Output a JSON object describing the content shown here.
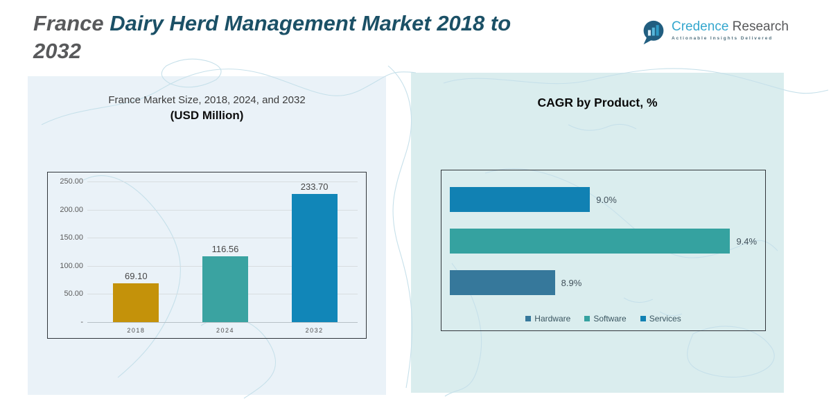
{
  "header": {
    "title_part1": "France ",
    "title_part2": "Dairy Herd Management Market 2018 to ",
    "title_part3": "2032",
    "logo": {
      "brand_part1": "Credence",
      "brand_part2": " Research",
      "tagline": "Actionable Insights Delivered",
      "icon": "bar-chart-speech-bubble",
      "accent_color": "#35A7CE",
      "icon_color": "#215E80"
    }
  },
  "left_chart": {
    "title_line1": "France Market Size, 2018, 2024, and 2032",
    "title_line2": "(USD Million)"
  },
  "right_chart": {
    "title": "CAGR by Product, %"
  },
  "chart_data": [
    {
      "type": "bar",
      "title": "France Market Size, 2018, 2024, and 2032 (USD Million)",
      "xlabel": "",
      "ylabel": "USD Million",
      "categories": [
        "2018",
        "2024",
        "2032"
      ],
      "values": [
        69.1,
        116.56,
        233.7
      ],
      "value_labels": [
        "69.10",
        "116.56",
        "233.70"
      ],
      "bar_colors": [
        "#C4920A",
        "#3AA3A1",
        "#1186B8"
      ],
      "ylim": [
        0,
        250
      ],
      "yticks": [
        "250.00",
        "200.00",
        "150.00",
        "100.00",
        "50.00",
        "-"
      ],
      "grid": true,
      "legend_position": "none"
    },
    {
      "type": "bar",
      "orientation": "horizontal",
      "title": "CAGR by Product, %",
      "xlabel": "CAGR %",
      "ylabel": "",
      "series": [
        {
          "name": "Hardware",
          "value": 8.9,
          "label": "8.9%",
          "color": "#36789B"
        },
        {
          "name": "Software",
          "value": 9.4,
          "label": "9.4%",
          "color": "#35A2A0"
        },
        {
          "name": "Services",
          "value": 9.0,
          "label": "9.0%",
          "color": "#1181B3"
        }
      ],
      "bar_order_top_to_bottom": [
        "Services",
        "Software",
        "Hardware"
      ],
      "xlim": [
        8.6,
        9.5
      ],
      "grid": false,
      "legend_position": "bottom",
      "legend": [
        "Hardware",
        "Software",
        "Services"
      ]
    }
  ]
}
